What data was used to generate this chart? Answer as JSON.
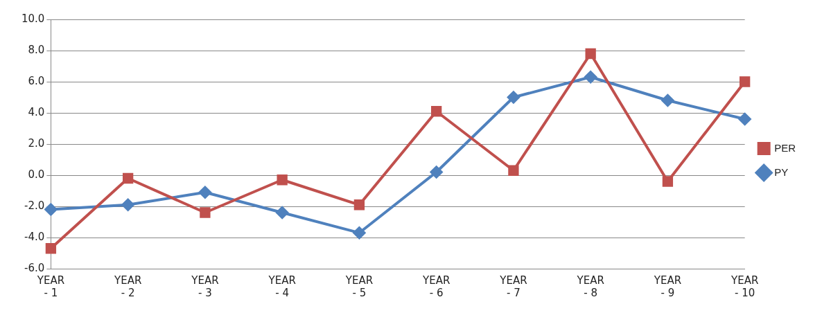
{
  "chart_data": {
    "type": "line",
    "categories": [
      "YEAR - 1",
      "YEAR - 2",
      "YEAR - 3",
      "YEAR - 4",
      "YEAR - 5",
      "YEAR - 6",
      "YEAR - 7",
      "YEAR - 8",
      "YEAR - 9",
      "YEAR - 10"
    ],
    "series": [
      {
        "name": "PER",
        "color": "#c0504d",
        "marker": "square",
        "values": [
          -4.7,
          -0.2,
          -2.4,
          -0.3,
          -1.9,
          4.1,
          0.3,
          7.8,
          -0.4,
          6.0
        ]
      },
      {
        "name": "PY",
        "color": "#4f81bd",
        "marker": "diamond",
        "values": [
          -2.2,
          -1.9,
          -1.1,
          -2.4,
          -3.7,
          0.2,
          5.0,
          6.3,
          4.8,
          3.6
        ]
      }
    ],
    "ylim": [
      -6,
      10
    ],
    "yticks": [
      {
        "value": -6,
        "label": "-6.0"
      },
      {
        "value": -4,
        "label": "-4.0"
      },
      {
        "value": -2,
        "label": "-2.0"
      },
      {
        "value": 0,
        "label": "0.0"
      },
      {
        "value": 2,
        "label": "2.0"
      },
      {
        "value": 4,
        "label": "4.0"
      },
      {
        "value": 6,
        "label": "6.0"
      },
      {
        "value": 8,
        "label": "8.0"
      },
      {
        "value": 10,
        "label": "10.0"
      }
    ],
    "grid": "y",
    "legend": "right",
    "line_style": "solid"
  }
}
